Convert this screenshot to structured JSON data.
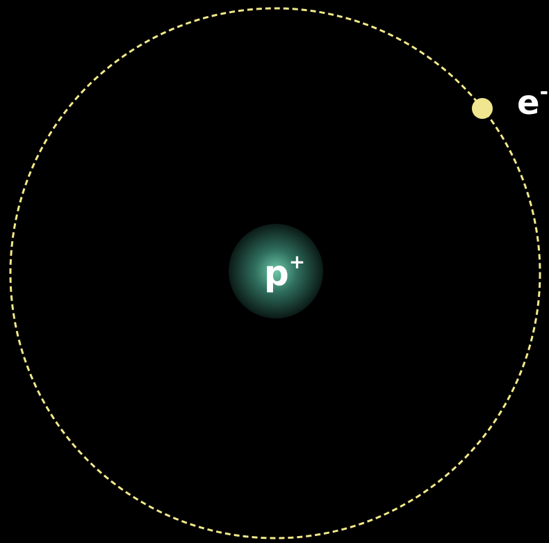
{
  "nucleus": {
    "label": "p",
    "charge": "+"
  },
  "electron": {
    "label": "e",
    "charge": "-"
  }
}
